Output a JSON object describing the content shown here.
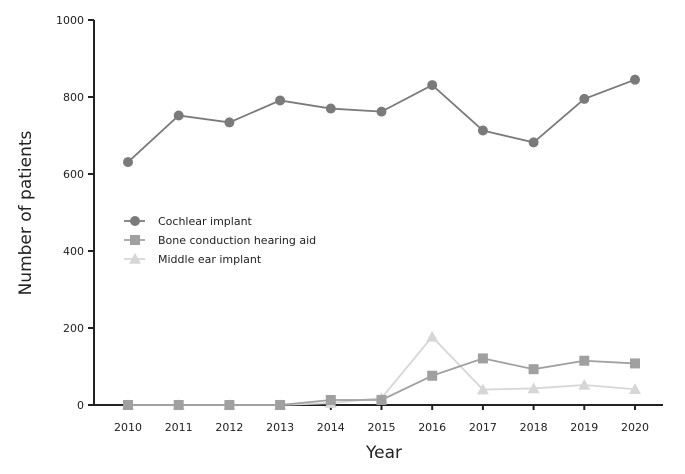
{
  "chart_data": {
    "type": "line",
    "title": "",
    "xlabel": "Year",
    "ylabel": "Number of patients",
    "x": [
      2010,
      2011,
      2012,
      2013,
      2014,
      2015,
      2016,
      2017,
      2018,
      2019,
      2020
    ],
    "x_tick_labels": [
      "2010",
      "2011",
      "2012",
      "2013",
      "2014",
      "2015",
      "2016",
      "2017",
      "2018",
      "2019",
      "2020"
    ],
    "y_tick_labels": [
      "0",
      "200",
      "400",
      "600",
      "800",
      "1000"
    ],
    "ylim": [
      0,
      1000
    ],
    "yticks": [
      0,
      200,
      400,
      600,
      800,
      1000
    ],
    "grid": false,
    "legend_position": "center-left",
    "series": [
      {
        "name": "Cochlear implant",
        "marker": "circle",
        "color": "#7a7a7a",
        "values": [
          631,
          752,
          734,
          791,
          770,
          762,
          831,
          713,
          682,
          795,
          845
        ]
      },
      {
        "name": "Bone conduction hearing aid",
        "marker": "square",
        "color": "#a0a0a0",
        "values": [
          0,
          0,
          0,
          0,
          13,
          13,
          76,
          121,
          93,
          115,
          108
        ]
      },
      {
        "name": "Middle ear implant",
        "marker": "triangle",
        "color": "#d6d6d6",
        "values": [
          0,
          0,
          0,
          0,
          5,
          18,
          177,
          40,
          43,
          52,
          41
        ]
      }
    ]
  }
}
